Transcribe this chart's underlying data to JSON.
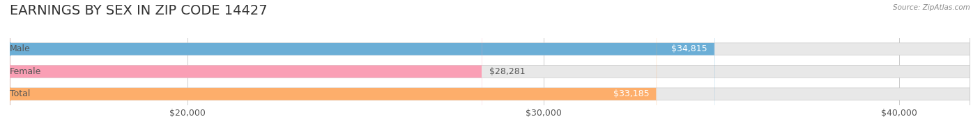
{
  "title": "EARNINGS BY SEX IN ZIP CODE 14427",
  "source": "Source: ZipAtlas.com",
  "categories": [
    "Male",
    "Female",
    "Total"
  ],
  "values": [
    34815,
    28281,
    33185
  ],
  "bar_colors": [
    "#6baed6",
    "#fa9fb5",
    "#fdae6b"
  ],
  "label_colors": [
    "#6baed6",
    "#fa9fb5",
    "#fdae6b"
  ],
  "bar_labels": [
    "$34,815",
    "$28,281",
    "$33,185"
  ],
  "label_white": [
    true,
    false,
    true
  ],
  "cat_label_colors": [
    "#6baed6",
    "#fa9fb5",
    "#fdae6b"
  ],
  "xlim": [
    15000,
    42000
  ],
  "xticks": [
    20000,
    30000,
    40000
  ],
  "xtick_labels": [
    "$20,000",
    "$30,000",
    "$40,000"
  ],
  "bg_color": "#ffffff",
  "bar_bg_color": "#e8e8e8",
  "title_fontsize": 14,
  "bar_height": 0.55,
  "figsize": [
    14.06,
    1.95
  ],
  "dpi": 100
}
